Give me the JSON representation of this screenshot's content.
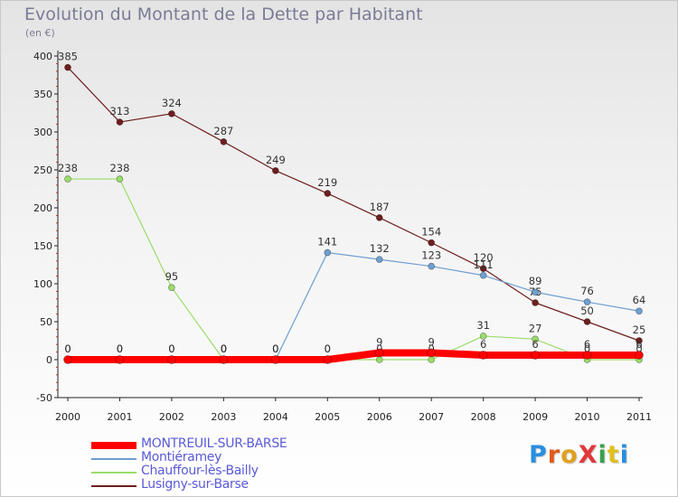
{
  "chart_data": {
    "type": "line",
    "title": "Evolution du Montant de la Dette par Habitant",
    "subtitle": "(en €)",
    "xlabel": "",
    "ylabel": "",
    "ylim": [
      -50,
      400
    ],
    "yticks": [
      -50,
      0,
      50,
      100,
      150,
      200,
      250,
      300,
      350,
      400
    ],
    "x": [
      "2000",
      "2001",
      "2002",
      "2003",
      "2004",
      "2005",
      "2006",
      "2007",
      "2008",
      "2009",
      "2010",
      "2011"
    ],
    "grid": false,
    "legend_position": "bottom-left",
    "series": [
      {
        "name": "Lusigny-sur-Barse",
        "color": "#6e1e1e",
        "values": [
          385,
          313,
          324,
          287,
          249,
          219,
          187,
          154,
          120,
          75,
          50,
          25
        ],
        "labels": [
          "385",
          "313",
          "324",
          "287",
          "249",
          "219",
          "187",
          "154",
          "120",
          "75",
          "50",
          "25"
        ]
      },
      {
        "name": "Chauffour-lès-Bailly",
        "color": "#99dd6a",
        "values": [
          238,
          238,
          95,
          0,
          0,
          0,
          0,
          0,
          31,
          27,
          0,
          0
        ],
        "labels": [
          "238",
          "238",
          "95",
          "0",
          "0",
          "0",
          "0",
          "0",
          "31",
          "27",
          "0",
          "0"
        ]
      },
      {
        "name": "Montiéramey",
        "color": "#6f9fd0",
        "values": [
          0,
          0,
          0,
          0,
          0,
          141,
          132,
          123,
          111,
          89,
          76,
          64
        ],
        "labels": [
          "0",
          "0",
          "0",
          "0",
          "0",
          "141",
          "132",
          "123",
          "111",
          "89",
          "76",
          "64"
        ]
      },
      {
        "name": "MONTREUIL-SUR-BARSE",
        "color": "#ff0000",
        "values": [
          0,
          0,
          0,
          0,
          0,
          0,
          9,
          9,
          6,
          6,
          6,
          6
        ],
        "labels": [
          "0",
          "0",
          "0",
          "0",
          "0",
          "0",
          "9",
          "9",
          "6",
          "6",
          "6",
          "6"
        ]
      }
    ]
  },
  "legend": [
    {
      "name": "MONTREUIL-SUR-BARSE",
      "color": "#ff0000"
    },
    {
      "name": "Montiéramey",
      "color": "#6f9fd0"
    },
    {
      "name": "Chauffour-lès-Bailly",
      "color": "#99dd6a"
    },
    {
      "name": "Lusigny-sur-Barse",
      "color": "#6e1e1e"
    }
  ],
  "logo": {
    "text": "ProXiti",
    "colors": [
      "#2a8ee0",
      "#e05a1a",
      "#e0a020",
      "#e03a3a",
      "#3aa04a",
      "#e0c020",
      "#2a8ee0"
    ]
  }
}
